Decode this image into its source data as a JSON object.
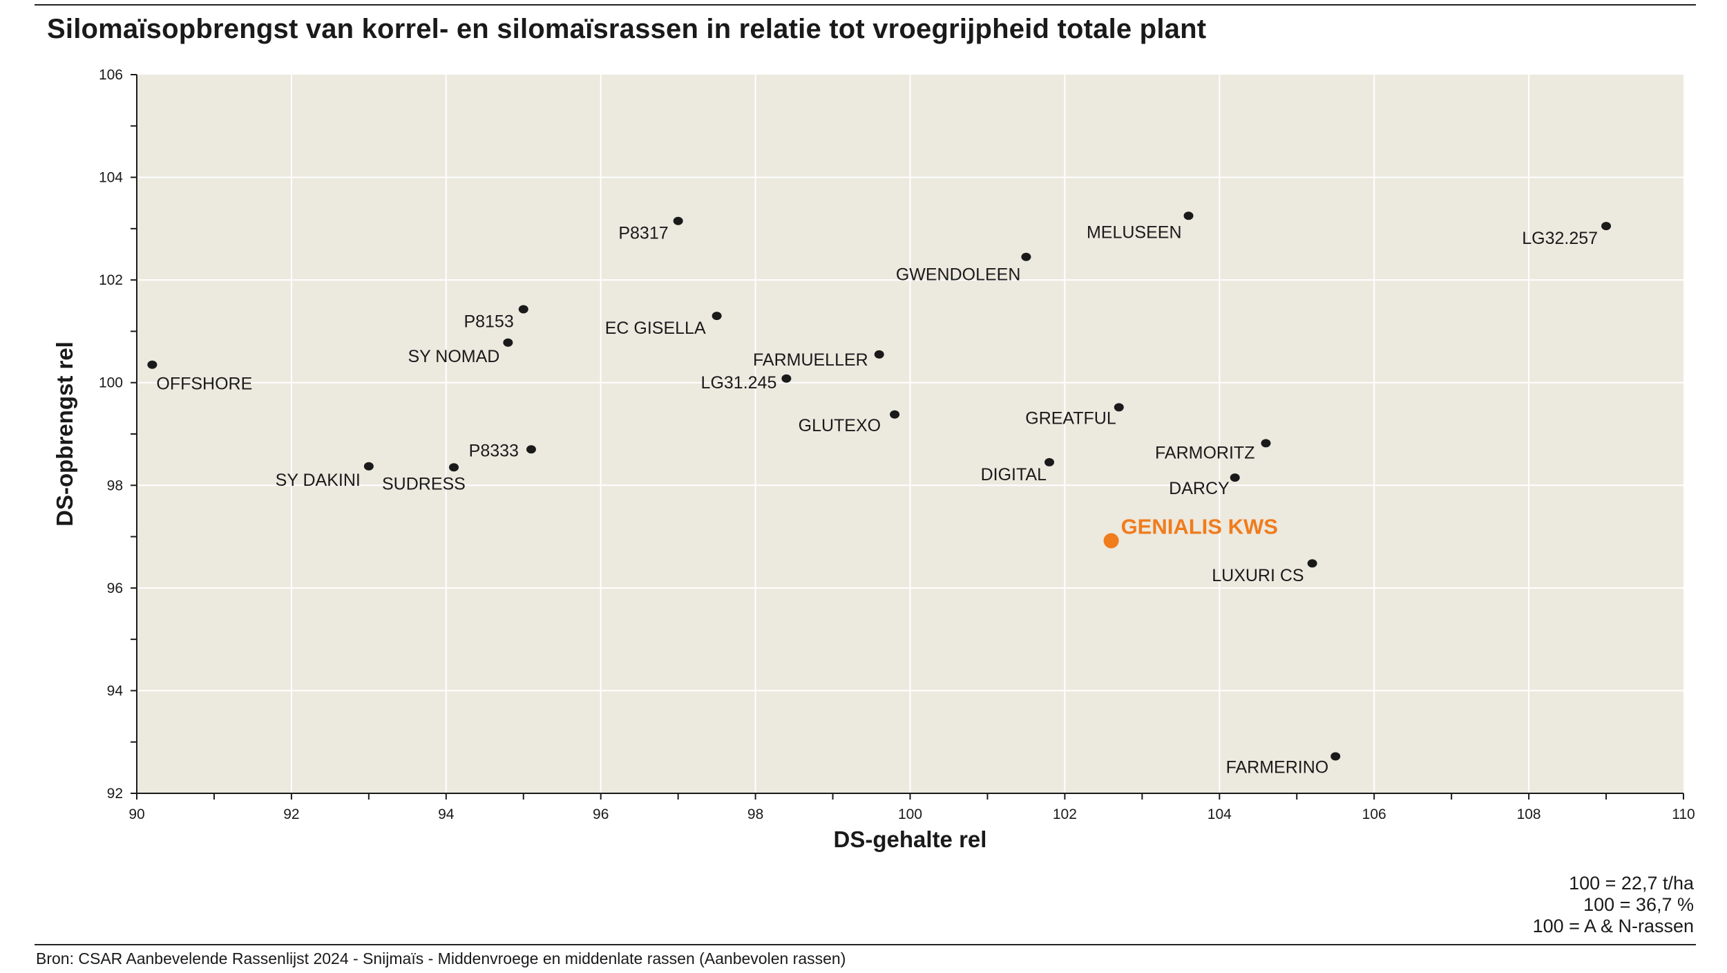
{
  "chart_data": {
    "type": "scatter",
    "title": "Silomaïsopbrengst van korrel- en silomaïsrassen in relatie tot vroegrijpheid totale plant",
    "xlabel": "DS-gehalte rel",
    "ylabel": "DS-opbrengst rel",
    "xlim": [
      90,
      110
    ],
    "ylim": [
      92,
      106
    ],
    "x_ticks": [
      "90",
      "92",
      "94",
      "96",
      "98",
      "100",
      "102",
      "104",
      "106",
      "108",
      "110"
    ],
    "y_ticks": [
      "92",
      "94",
      "96",
      "98",
      "100",
      "102",
      "104",
      "106"
    ],
    "grid": true,
    "background_color": "#ece9df",
    "point_color": "#1a1a1a",
    "highlight_color": "#f07c1c",
    "points": [
      {
        "label": "OFFSHORE",
        "x": 90.2,
        "y": 100.35
      },
      {
        "label": "P8153",
        "x": 95.0,
        "y": 101.43
      },
      {
        "label": "SY NOMAD",
        "x": 94.8,
        "y": 100.78
      },
      {
        "label": "SY DAKINI",
        "x": 93.0,
        "y": 98.37
      },
      {
        "label": "SUDRESS",
        "x": 94.1,
        "y": 98.35
      },
      {
        "label": "P8333",
        "x": 95.1,
        "y": 98.7
      },
      {
        "label": "P8317",
        "x": 97.0,
        "y": 103.15
      },
      {
        "label": "EC GISELLA",
        "x": 97.5,
        "y": 101.3
      },
      {
        "label": "LG31.245",
        "x": 98.4,
        "y": 100.08
      },
      {
        "label": "FARMUELLER",
        "x": 99.6,
        "y": 100.55
      },
      {
        "label": "GLUTEXO",
        "x": 99.8,
        "y": 99.38
      },
      {
        "label": "GWENDOLEEN",
        "x": 101.5,
        "y": 102.45
      },
      {
        "label": "MELUSEEN",
        "x": 103.6,
        "y": 103.25
      },
      {
        "label": "LG32.257",
        "x": 109.0,
        "y": 103.05
      },
      {
        "label": "GREATFUL",
        "x": 102.7,
        "y": 99.52
      },
      {
        "label": "DIGITAL",
        "x": 101.8,
        "y": 98.45
      },
      {
        "label": "FARMORITZ",
        "x": 104.6,
        "y": 98.82
      },
      {
        "label": "DARCY",
        "x": 104.2,
        "y": 98.15
      },
      {
        "label": "GENIALIS KWS",
        "x": 102.6,
        "y": 96.92,
        "highlight": true
      },
      {
        "label": "LUXURI CS",
        "x": 105.2,
        "y": 96.48
      },
      {
        "label": "FARMERINO",
        "x": 105.5,
        "y": 92.72
      }
    ],
    "notes": [
      "100 = 22,7 t/ha",
      "100 = 36,7 %",
      "100 = A & N-rassen"
    ]
  },
  "source": "Bron: CSAR Aanbevelende Rassenlijst 2024 - Snijmaïs - Middenvroege en middenlate rassen (Aanbevolen rassen)"
}
